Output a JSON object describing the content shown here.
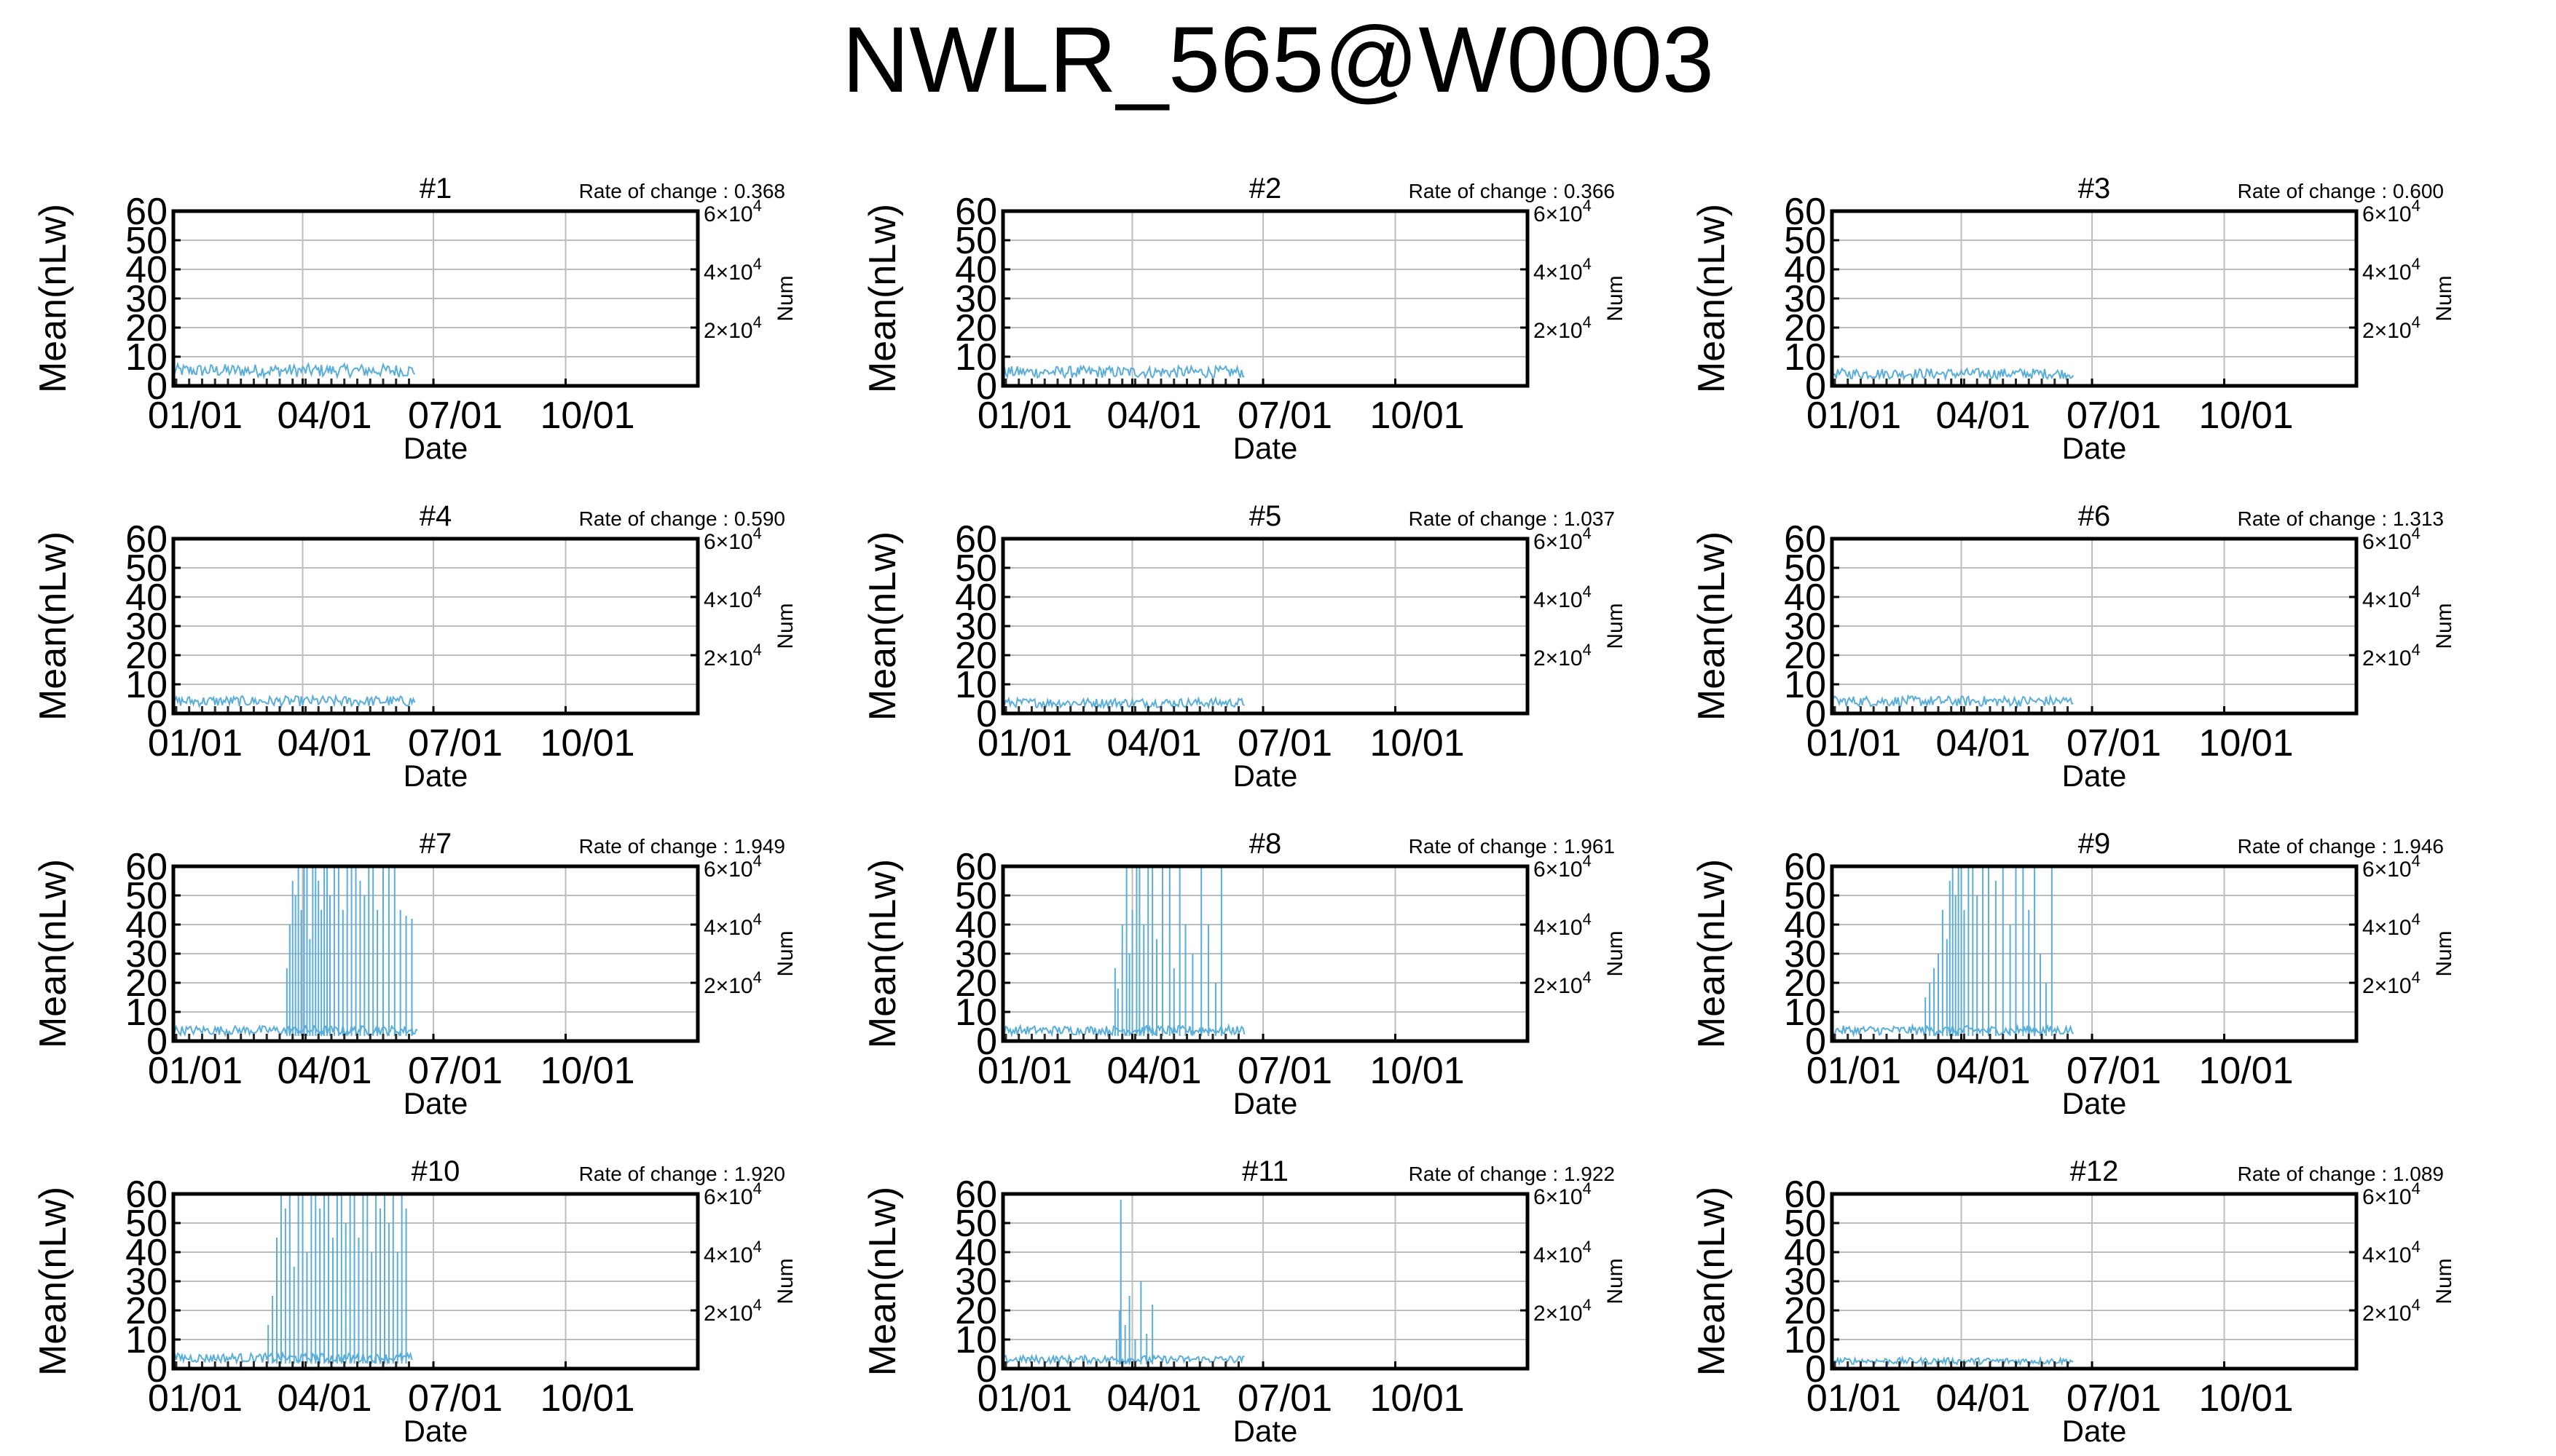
{
  "title": "NWLR_565@W0003",
  "chart_data": {
    "type": "line",
    "title": "NWLR_565@W0003",
    "xlabel": "Date",
    "ylabel": "Mean(nLw)",
    "y2label": "Num",
    "ylim": [
      0,
      60
    ],
    "yticks": [
      "0",
      "10",
      "20",
      "30",
      "40",
      "50",
      "60"
    ],
    "y2lim": [
      0,
      60000
    ],
    "y2ticks": [
      {
        "value": 20000,
        "coef": "2",
        "exp": "4"
      },
      {
        "value": 40000,
        "coef": "4",
        "exp": "4"
      },
      {
        "value": 60000,
        "coef": "6",
        "exp": "4"
      }
    ],
    "xlim": [
      "01/01",
      "12/31"
    ],
    "xticks": [
      {
        "label": "01/01",
        "day": 0
      },
      {
        "label": "04/01",
        "day": 90
      },
      {
        "label": "07/01",
        "day": 181
      },
      {
        "label": "10/01",
        "day": 273
      }
    ],
    "grid": true,
    "panels": [
      {
        "label": "#1",
        "rate_label": "Rate of change : 0.368",
        "rate": 0.368,
        "data_end": 168,
        "base": 5.0,
        "spikes": []
      },
      {
        "label": "#2",
        "rate_label": "Rate of change : 0.366",
        "rate": 0.366,
        "data_end": 168,
        "base": 4.5,
        "spikes": []
      },
      {
        "label": "#3",
        "rate_label": "Rate of change : 0.600",
        "rate": 0.6,
        "data_end": 168,
        "base": 4.0,
        "spikes": []
      },
      {
        "label": "#4",
        "rate_label": "Rate of change : 0.590",
        "rate": 0.59,
        "data_end": 168,
        "base": 4.0,
        "spikes": []
      },
      {
        "label": "#5",
        "rate_label": "Rate of change : 1.037",
        "rate": 1.037,
        "data_end": 168,
        "base": 3.5,
        "spikes": []
      },
      {
        "label": "#6",
        "rate_label": "Rate of change : 1.313",
        "rate": 1.313,
        "data_end": 168,
        "base": 4.0,
        "spikes": []
      },
      {
        "label": "#7",
        "rate_label": "Rate of change : 1.949",
        "rate": 1.949,
        "data_end": 170,
        "base": 3.5,
        "spikes": [
          [
            79,
            25
          ],
          [
            81,
            40
          ],
          [
            83,
            55
          ],
          [
            85,
            50
          ],
          [
            87,
            60
          ],
          [
            89,
            45
          ],
          [
            91,
            60
          ],
          [
            93,
            60
          ],
          [
            95,
            35
          ],
          [
            97,
            60
          ],
          [
            99,
            60
          ],
          [
            101,
            55
          ],
          [
            103,
            45
          ],
          [
            105,
            60
          ],
          [
            107,
            60
          ],
          [
            109,
            50
          ],
          [
            112,
            60
          ],
          [
            115,
            60
          ],
          [
            118,
            45
          ],
          [
            121,
            60
          ],
          [
            124,
            60
          ],
          [
            127,
            60
          ],
          [
            130,
            55
          ],
          [
            133,
            50
          ],
          [
            136,
            60
          ],
          [
            139,
            60
          ],
          [
            142,
            45
          ],
          [
            146,
            60
          ],
          [
            150,
            60
          ],
          [
            154,
            60
          ],
          [
            158,
            45
          ],
          [
            162,
            43
          ],
          [
            166,
            42
          ]
        ]
      },
      {
        "label": "#8",
        "rate_label": "Rate of change : 1.961",
        "rate": 1.961,
        "data_end": 168,
        "base": 3.5,
        "spikes": [
          [
            78,
            25
          ],
          [
            80,
            18
          ],
          [
            83,
            40
          ],
          [
            86,
            60
          ],
          [
            88,
            30
          ],
          [
            90,
            45
          ],
          [
            93,
            60
          ],
          [
            95,
            60
          ],
          [
            98,
            40
          ],
          [
            101,
            60
          ],
          [
            104,
            60
          ],
          [
            107,
            35
          ],
          [
            111,
            60
          ],
          [
            116,
            60
          ],
          [
            119,
            25
          ],
          [
            123,
            60
          ],
          [
            127,
            40
          ],
          [
            132,
            30
          ],
          [
            138,
            60
          ],
          [
            143,
            40
          ],
          [
            148,
            20
          ],
          [
            152,
            60
          ]
        ]
      },
      {
        "label": "#9",
        "rate_label": "Rate of change : 1.946",
        "rate": 1.946,
        "data_end": 168,
        "base": 3.5,
        "spikes": [
          [
            65,
            15
          ],
          [
            68,
            20
          ],
          [
            71,
            25
          ],
          [
            74,
            30
          ],
          [
            77,
            45
          ],
          [
            80,
            35
          ],
          [
            82,
            55
          ],
          [
            84,
            60
          ],
          [
            86,
            50
          ],
          [
            88,
            60
          ],
          [
            90,
            60
          ],
          [
            92,
            45
          ],
          [
            95,
            60
          ],
          [
            98,
            60
          ],
          [
            101,
            50
          ],
          [
            105,
            60
          ],
          [
            109,
            60
          ],
          [
            114,
            55
          ],
          [
            119,
            60
          ],
          [
            124,
            40
          ],
          [
            128,
            60
          ],
          [
            133,
            60
          ],
          [
            137,
            45
          ],
          [
            141,
            60
          ],
          [
            145,
            30
          ],
          [
            149,
            20
          ],
          [
            153,
            60
          ]
        ]
      },
      {
        "label": "#10",
        "rate_label": "Rate of change : 1.920",
        "rate": 1.92,
        "data_end": 166,
        "base": 3.5,
        "spikes": [
          [
            66,
            15
          ],
          [
            69,
            25
          ],
          [
            72,
            45
          ],
          [
            75,
            60
          ],
          [
            78,
            55
          ],
          [
            81,
            60
          ],
          [
            84,
            35
          ],
          [
            87,
            60
          ],
          [
            90,
            60
          ],
          [
            93,
            40
          ],
          [
            96,
            60
          ],
          [
            99,
            60
          ],
          [
            102,
            55
          ],
          [
            105,
            60
          ],
          [
            108,
            60
          ],
          [
            111,
            45
          ],
          [
            114,
            60
          ],
          [
            117,
            60
          ],
          [
            120,
            50
          ],
          [
            123,
            60
          ],
          [
            126,
            60
          ],
          [
            129,
            45
          ],
          [
            132,
            60
          ],
          [
            135,
            60
          ],
          [
            138,
            40
          ],
          [
            141,
            60
          ],
          [
            144,
            55
          ],
          [
            147,
            60
          ],
          [
            150,
            50
          ],
          [
            153,
            60
          ],
          [
            156,
            40
          ],
          [
            159,
            60
          ],
          [
            162,
            55
          ]
        ]
      },
      {
        "label": "#11",
        "rate_label": "Rate of change : 1.922",
        "rate": 1.922,
        "data_end": 168,
        "base": 3.0,
        "spikes": [
          [
            79,
            10
          ],
          [
            81,
            20
          ],
          [
            82,
            58
          ],
          [
            85,
            15
          ],
          [
            88,
            25
          ],
          [
            92,
            10
          ],
          [
            96,
            30
          ],
          [
            100,
            12
          ],
          [
            104,
            22
          ]
        ]
      },
      {
        "label": "#12",
        "rate_label": "Rate of change : 1.089",
        "rate": 1.089,
        "data_end": 168,
        "base": 2.5,
        "spikes": []
      }
    ]
  },
  "colors": {
    "series": "#5aaed9",
    "markers": "#2b2b2b",
    "grid": "#bdbdbd",
    "axes": "#000000"
  }
}
